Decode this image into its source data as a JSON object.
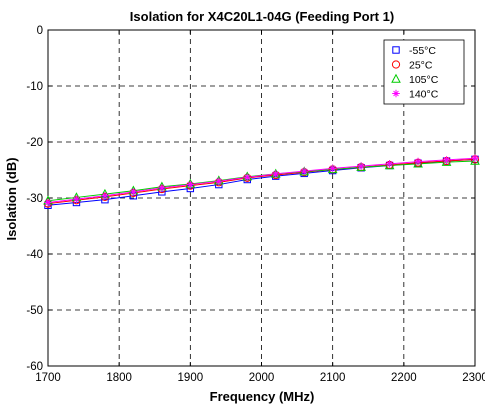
{
  "chart_data": {
    "type": "line",
    "title": "Isolation for X4C20L1-04G (Feeding Port 1)",
    "xlabel": "Frequency (MHz)",
    "ylabel": "Isolation (dB)",
    "xlim": [
      1700,
      2300
    ],
    "ylim": [
      -60,
      0
    ],
    "xticks": [
      1700,
      1800,
      1900,
      2000,
      2100,
      2200,
      2300
    ],
    "yticks": [
      0,
      -10,
      -20,
      -30,
      -40,
      -50,
      -60
    ],
    "grid": true,
    "grid_style": "dashed",
    "legend_position": "top-right",
    "x": [
      1700,
      1740,
      1780,
      1820,
      1860,
      1900,
      1940,
      1980,
      2020,
      2060,
      2100,
      2140,
      2180,
      2220,
      2260,
      2300
    ],
    "series": [
      {
        "name": "-55°C",
        "marker": "square",
        "color": "#0000ff",
        "values": [
          -31.3,
          -30.8,
          -30.3,
          -29.6,
          -28.9,
          -28.3,
          -27.6,
          -26.7,
          -26.1,
          -25.6,
          -25.1,
          -24.6,
          -24.2,
          -23.8,
          -23.4,
          -23.1
        ]
      },
      {
        "name": "25°C",
        "marker": "circle",
        "color": "#ff0000",
        "values": [
          -31.0,
          -30.4,
          -29.8,
          -29.1,
          -28.4,
          -27.8,
          -27.2,
          -26.4,
          -25.9,
          -25.4,
          -24.9,
          -24.5,
          -24.1,
          -23.7,
          -23.4,
          -23.1
        ]
      },
      {
        "name": "105°C",
        "marker": "triangle",
        "color": "#00cc00",
        "values": [
          -30.5,
          -29.9,
          -29.3,
          -28.7,
          -28.0,
          -27.5,
          -26.9,
          -26.2,
          -25.7,
          -25.3,
          -24.9,
          -24.5,
          -24.2,
          -23.9,
          -23.6,
          -23.4
        ]
      },
      {
        "name": "140°C",
        "marker": "asterisk",
        "color": "#ff00ff",
        "values": [
          -30.8,
          -30.2,
          -29.6,
          -28.9,
          -28.2,
          -27.6,
          -27.0,
          -26.3,
          -25.7,
          -25.2,
          -24.7,
          -24.3,
          -23.9,
          -23.5,
          -23.2,
          -22.9
        ]
      }
    ]
  }
}
